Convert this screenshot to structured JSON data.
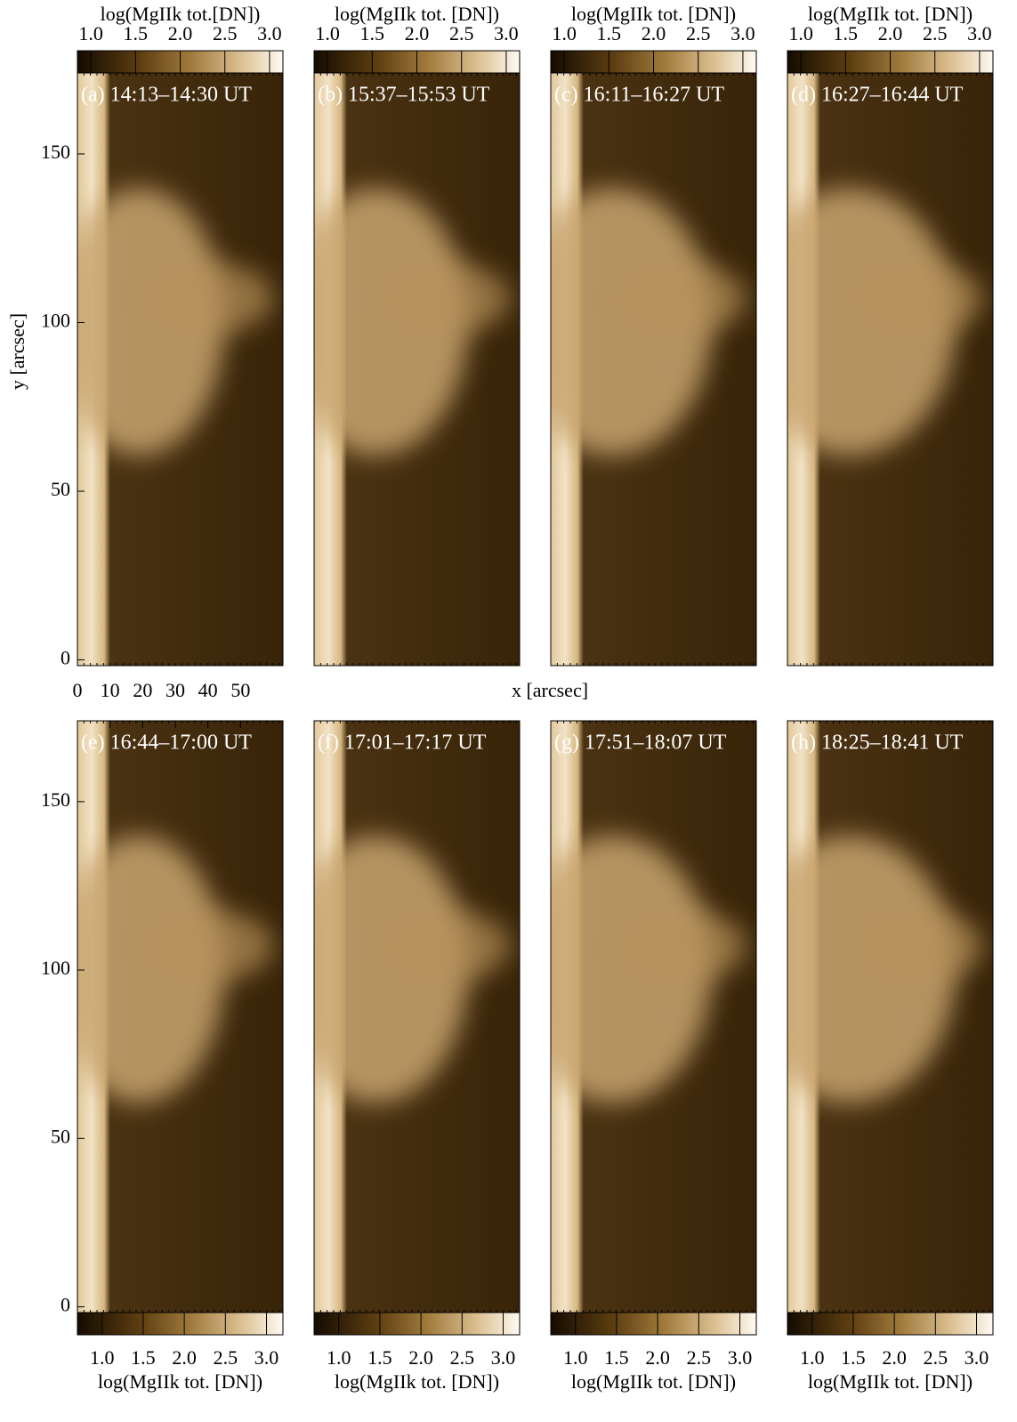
{
  "chart_data": [
    {
      "type": "image",
      "title": "(a) 14:13–14:30 UT",
      "colorbar": "top",
      "colorbar_label": "log(MgIIk tot.[DN])",
      "clim": [
        0.85,
        3.15
      ],
      "cticks": [
        {
          "value": 1,
          "label": "1.0"
        },
        {
          "value": 1.5,
          "label": "1.5"
        },
        {
          "value": 2,
          "label": "2.0"
        },
        {
          "value": 2.5,
          "label": "2.5"
        },
        {
          "value": 3,
          "label": "3.0"
        }
      ],
      "xlim": [
        0,
        63
      ],
      "ylim": [
        -1.7,
        174
      ],
      "yticks": [
        0,
        50,
        100,
        150
      ],
      "ylabel": "y [arcsec]"
    },
    {
      "type": "image",
      "title": "(b) 15:37–15:53 UT",
      "colorbar": "top",
      "colorbar_label": "log(MgIIk tot. [DN])",
      "clim": [
        0.85,
        3.15
      ],
      "cticks": [
        {
          "value": 1,
          "label": "1.0"
        },
        {
          "value": 1.5,
          "label": "1.5"
        },
        {
          "value": 2,
          "label": "2.0"
        },
        {
          "value": 2.5,
          "label": "2.5"
        },
        {
          "value": 3,
          "label": "3.0"
        }
      ],
      "xlim": [
        0,
        63
      ],
      "ylim": [
        -1.7,
        174
      ]
    },
    {
      "type": "image",
      "title": "(c) 16:11–16:27 UT",
      "colorbar": "top",
      "colorbar_label": "log(MgIIk tot. [DN])",
      "clim": [
        0.85,
        3.15
      ],
      "cticks": [
        {
          "value": 1,
          "label": "1.0"
        },
        {
          "value": 1.5,
          "label": "1.5"
        },
        {
          "value": 2,
          "label": "2.0"
        },
        {
          "value": 2.5,
          "label": "2.5"
        },
        {
          "value": 3,
          "label": "3.0"
        }
      ],
      "xlim": [
        0,
        63
      ],
      "ylim": [
        -1.7,
        174
      ]
    },
    {
      "type": "image",
      "title": "(d) 16:27–16:44 UT",
      "colorbar": "top",
      "colorbar_label": "log(MgIIk tot. [DN])",
      "clim": [
        0.85,
        3.15
      ],
      "cticks": [
        {
          "value": 1,
          "label": "1.0"
        },
        {
          "value": 1.5,
          "label": "1.5"
        },
        {
          "value": 2,
          "label": "2.0"
        },
        {
          "value": 2.5,
          "label": "2.5"
        },
        {
          "value": 3,
          "label": "3.0"
        }
      ],
      "xlim": [
        0,
        63
      ],
      "ylim": [
        -1.7,
        174
      ]
    },
    {
      "type": "image",
      "title": "(e) 16:44–17:00 UT",
      "colorbar": "bottom",
      "colorbar_label": "log(MgIIk tot. [DN])",
      "clim": [
        0.7,
        3.2
      ],
      "cticks": [
        {
          "value": 1,
          "label": "1.0"
        },
        {
          "value": 1.5,
          "label": "1.5"
        },
        {
          "value": 2,
          "label": "2.0"
        },
        {
          "value": 2.5,
          "label": "2.5"
        },
        {
          "value": 3,
          "label": "3.0"
        }
      ],
      "xlim": [
        0,
        63
      ],
      "ylim": [
        -1.7,
        174
      ],
      "yticks": [
        0,
        50,
        100,
        150
      ],
      "xticks": [
        0,
        10,
        20,
        30,
        40,
        50
      ],
      "xlabel": "x [arcsec]"
    },
    {
      "type": "image",
      "title": "(f) 17:01–17:17 UT",
      "colorbar": "bottom",
      "colorbar_label": "log(MgIIk tot. [DN])",
      "clim": [
        0.7,
        3.2
      ],
      "cticks": [
        {
          "value": 1,
          "label": "1.0"
        },
        {
          "value": 1.5,
          "label": "1.5"
        },
        {
          "value": 2,
          "label": "2.0"
        },
        {
          "value": 2.5,
          "label": "2.5"
        },
        {
          "value": 3,
          "label": "3.0"
        }
      ],
      "xlim": [
        0,
        63
      ],
      "ylim": [
        -1.7,
        174
      ]
    },
    {
      "type": "image",
      "title": "(g) 17:51–18:07 UT",
      "colorbar": "bottom",
      "colorbar_label": "log(MgIIk tot. [DN])",
      "clim": [
        0.7,
        3.2
      ],
      "cticks": [
        {
          "value": 1,
          "label": "1.0"
        },
        {
          "value": 1.5,
          "label": "1.5"
        },
        {
          "value": 2,
          "label": "2.0"
        },
        {
          "value": 2.5,
          "label": "2.5"
        },
        {
          "value": 3,
          "label": "3.0"
        }
      ],
      "xlim": [
        0,
        63
      ],
      "ylim": [
        -1.7,
        174
      ]
    },
    {
      "type": "image",
      "title": "(h) 18:25–18:41 UT",
      "colorbar": "bottom",
      "colorbar_label": "log(MgIIk tot. [DN])",
      "clim": [
        0.7,
        3.2
      ],
      "cticks": [
        {
          "value": 1,
          "label": "1.0"
        },
        {
          "value": 1.5,
          "label": "1.5"
        },
        {
          "value": 2,
          "label": "2.0"
        },
        {
          "value": 2.5,
          "label": "2.5"
        },
        {
          "value": 3,
          "label": "3.0"
        }
      ],
      "xlim": [
        0,
        63
      ],
      "ylim": [
        -1.7,
        174
      ]
    }
  ]
}
